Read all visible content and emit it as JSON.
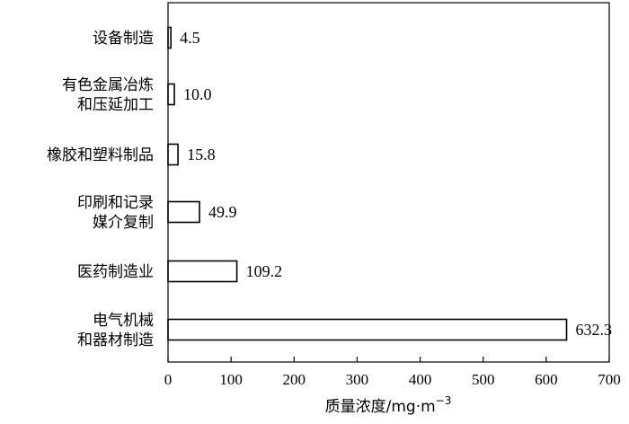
{
  "chart_data": {
    "type": "bar",
    "orientation": "horizontal",
    "categories": [
      [
        "设备制造"
      ],
      [
        "有色金属冶炼",
        "和压延加工"
      ],
      [
        "橡胶和塑料制品"
      ],
      [
        "印刷和记录",
        "媒介复制"
      ],
      [
        "医药制造业"
      ],
      [
        "电气机械",
        "和器材制造"
      ]
    ],
    "values": [
      4.5,
      10.0,
      15.8,
      49.9,
      109.2,
      632.3
    ],
    "value_labels": [
      "4.5",
      "10.0",
      "15.8",
      "49.9",
      "109.2",
      "632.3"
    ],
    "xlim": [
      0,
      700
    ],
    "xticks": [
      0,
      100,
      200,
      300,
      400,
      500,
      600,
      700
    ],
    "xlabel": "质量浓度/mg·m",
    "xlabel_superscript": "−3",
    "ylabel": "",
    "title": "",
    "grid": false,
    "bar_fill": "#ffffff",
    "bar_stroke": "#000000"
  }
}
